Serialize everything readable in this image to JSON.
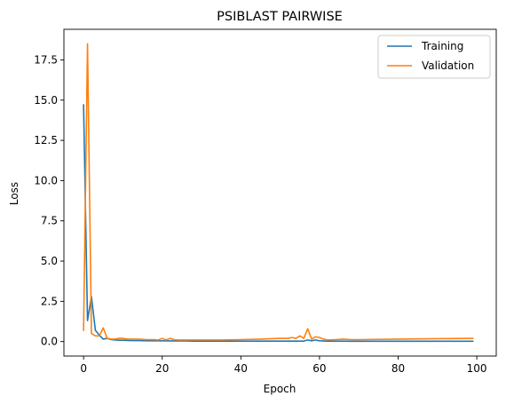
{
  "chart_data": {
    "type": "line",
    "title": "PSIBLAST PAIRWISE",
    "xlabel": "Epoch",
    "ylabel": "Loss",
    "xlim": [
      -5,
      104.95
    ],
    "ylim": [
      -0.9,
      19.4
    ],
    "x_ticks": [
      0,
      20,
      40,
      60,
      80,
      100
    ],
    "x_tick_labels": [
      "0",
      "20",
      "40",
      "60",
      "80",
      "100"
    ],
    "y_ticks": [
      0.0,
      2.5,
      5.0,
      7.5,
      10.0,
      12.5,
      15.0,
      17.5
    ],
    "y_tick_labels": [
      "0.0",
      "2.5",
      "5.0",
      "7.5",
      "10.0",
      "12.5",
      "15.0",
      "17.5"
    ],
    "grid": false,
    "legend_position": "top-right",
    "series": [
      {
        "name": "Training",
        "color": "#1f77b4",
        "x": [
          0,
          1,
          2,
          3,
          4,
          5,
          6,
          7,
          8,
          9,
          10,
          12,
          14,
          16,
          18,
          20,
          22,
          24,
          26,
          28,
          30,
          35,
          40,
          45,
          50,
          55,
          56,
          57,
          58,
          59,
          60,
          62,
          64,
          66,
          68,
          70,
          80,
          90,
          99
        ],
        "y": [
          14.7,
          1.3,
          2.8,
          0.7,
          0.4,
          0.15,
          0.2,
          0.12,
          0.1,
          0.08,
          0.08,
          0.06,
          0.06,
          0.05,
          0.05,
          0.05,
          0.04,
          0.04,
          0.04,
          0.03,
          0.03,
          0.03,
          0.03,
          0.03,
          0.03,
          0.03,
          0.03,
          0.1,
          0.05,
          0.1,
          0.05,
          0.03,
          0.03,
          0.03,
          0.02,
          0.02,
          0.02,
          0.02,
          0.02
        ]
      },
      {
        "name": "Validation",
        "color": "#ff7f0e",
        "x": [
          0,
          1,
          2,
          3,
          4,
          5,
          6,
          7,
          8,
          9,
          10,
          11,
          12,
          14,
          16,
          18,
          19,
          20,
          21,
          22,
          23,
          24,
          26,
          28,
          30,
          35,
          40,
          45,
          50,
          52,
          53,
          54,
          55,
          56,
          57,
          58,
          59,
          60,
          61,
          62,
          64,
          66,
          68,
          70,
          80,
          90,
          99
        ],
        "y": [
          0.7,
          18.5,
          0.5,
          0.35,
          0.35,
          0.85,
          0.2,
          0.15,
          0.15,
          0.2,
          0.2,
          0.15,
          0.15,
          0.15,
          0.12,
          0.12,
          0.1,
          0.2,
          0.1,
          0.2,
          0.12,
          0.1,
          0.1,
          0.1,
          0.1,
          0.1,
          0.12,
          0.15,
          0.2,
          0.2,
          0.25,
          0.2,
          0.35,
          0.2,
          0.8,
          0.15,
          0.3,
          0.25,
          0.15,
          0.1,
          0.12,
          0.15,
          0.12,
          0.12,
          0.15,
          0.18,
          0.2
        ]
      }
    ]
  }
}
